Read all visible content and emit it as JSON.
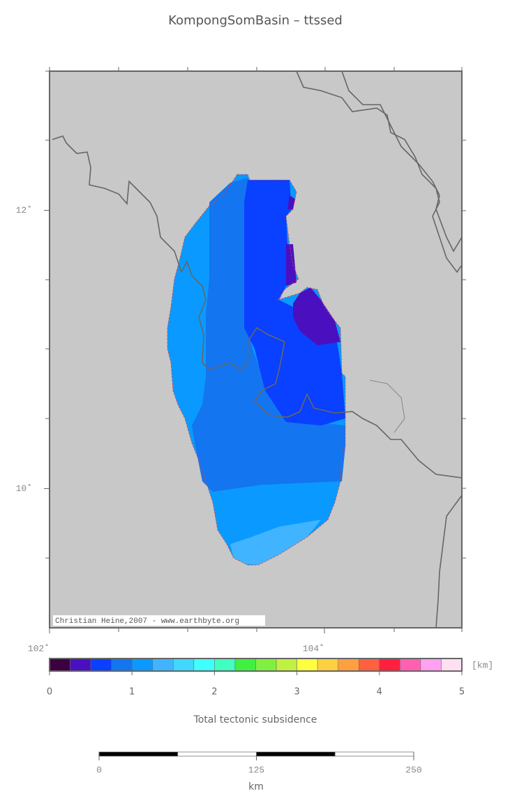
{
  "title": "KompongSomBasin – ttssed",
  "map": {
    "xlim": [
      102,
      105
    ],
    "ylim": [
      9,
      13
    ],
    "xticks": [
      {
        "value": 102,
        "label": "102˚"
      },
      {
        "value": 104,
        "label": "104˚"
      }
    ],
    "yticks": [
      {
        "value": 10,
        "label": "10˚"
      },
      {
        "value": 12,
        "label": "12˚"
      }
    ],
    "credit": "Christian Heine,2007 - www.earthbyte.org"
  },
  "colorbar": {
    "lim": [
      0,
      5
    ],
    "ticks": [
      0,
      1,
      2,
      3,
      4,
      5
    ],
    "unit": "[km]",
    "label": "Total tectonic subsidence",
    "colors": [
      "#3c0040",
      "#4a10c0",
      "#0a40ff",
      "#1475f0",
      "#0a9aff",
      "#40b4ff",
      "#40d8ff",
      "#40ffff",
      "#40ffc0",
      "#40f040",
      "#80f040",
      "#c0f040",
      "#ffff40",
      "#ffd040",
      "#ffa040",
      "#ff6040",
      "#ff2040",
      "#ff60b0",
      "#ffa0f0",
      "#ffe0f0"
    ]
  },
  "scalebar": {
    "lim": [
      0,
      250
    ],
    "ticks": [
      0,
      125,
      250
    ],
    "unit": "km"
  }
}
